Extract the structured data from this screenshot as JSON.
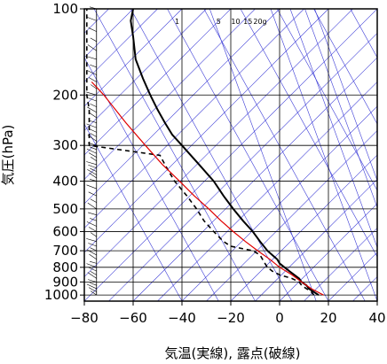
{
  "chart_data": {
    "type": "line",
    "title": "",
    "xlabel": "気温(実線), 露点(破線)",
    "ylabel": "気圧(hPa)",
    "xlim": [
      -80,
      40
    ],
    "ylim": [
      1050,
      100
    ],
    "y_scale": "log",
    "x_ticks": [
      -80,
      -60,
      -40,
      -20,
      0,
      20,
      40
    ],
    "x_tick_labels": [
      "−80",
      "−60",
      "−40",
      "−20",
      "0",
      "20",
      "40"
    ],
    "y_ticks": [
      100,
      200,
      300,
      400,
      500,
      600,
      700,
      800,
      900,
      1000
    ],
    "y_tick_labels": [
      "100",
      "200",
      "300",
      "400",
      "500",
      "600",
      "700",
      "800",
      "900",
      "1000"
    ],
    "grid": true,
    "mixing_ratio_labels": [
      "1",
      "5",
      "10",
      "15",
      "20g"
    ],
    "colors": {
      "isotherm": "#3b3bd6",
      "parcel": "#e00000",
      "temperature": "#000000",
      "dewpoint": "#000000",
      "grid": "#000000"
    },
    "series": [
      {
        "style": "solid",
        "points": [
          [
            1000,
            16
          ],
          [
            975,
            14
          ],
          [
            950,
            12
          ],
          [
            925,
            11
          ],
          [
            900,
            9
          ],
          [
            875,
            8
          ],
          [
            850,
            6
          ],
          [
            825,
            4
          ],
          [
            800,
            2
          ],
          [
            775,
            0
          ],
          [
            750,
            -1
          ],
          [
            725,
            -3
          ],
          [
            700,
            -5
          ],
          [
            650,
            -8
          ],
          [
            600,
            -11
          ],
          [
            550,
            -15
          ],
          [
            500,
            -19
          ],
          [
            450,
            -23
          ],
          [
            400,
            -27
          ],
          [
            350,
            -33
          ],
          [
            300,
            -40
          ],
          [
            275,
            -44
          ],
          [
            250,
            -47
          ],
          [
            225,
            -50
          ],
          [
            200,
            -53
          ],
          [
            175,
            -56
          ],
          [
            150,
            -59
          ],
          [
            125,
            -60
          ],
          [
            110,
            -61
          ],
          [
            100,
            -60
          ]
        ]
      },
      {
        "style": "dashed",
        "points": [
          [
            1000,
            14
          ],
          [
            975,
            13
          ],
          [
            950,
            11
          ],
          [
            925,
            9
          ],
          [
            900,
            8
          ],
          [
            875,
            5
          ],
          [
            850,
            0
          ],
          [
            825,
            -3
          ],
          [
            800,
            -5
          ],
          [
            775,
            -6
          ],
          [
            750,
            -7
          ],
          [
            725,
            -8
          ],
          [
            700,
            -11
          ],
          [
            675,
            -20
          ],
          [
            650,
            -23
          ],
          [
            600,
            -27
          ],
          [
            550,
            -31
          ],
          [
            500,
            -34
          ],
          [
            450,
            -38
          ],
          [
            400,
            -43
          ],
          [
            375,
            -45
          ],
          [
            350,
            -47
          ],
          [
            325,
            -49
          ],
          [
            300,
            -78
          ],
          [
            275,
            -78
          ],
          [
            250,
            -78
          ],
          [
            225,
            -78
          ],
          [
            200,
            -79
          ],
          [
            175,
            -79
          ],
          [
            150,
            -79
          ],
          [
            125,
            -79
          ],
          [
            100,
            -79
          ]
        ]
      },
      {
        "style": "parcel",
        "points": [
          [
            1000,
            18
          ],
          [
            950,
            13
          ],
          [
            900,
            9
          ],
          [
            850,
            5
          ],
          [
            800,
            0
          ],
          [
            750,
            -4
          ],
          [
            700,
            -9
          ],
          [
            650,
            -14
          ],
          [
            600,
            -19
          ],
          [
            550,
            -24
          ],
          [
            500,
            -29
          ],
          [
            450,
            -35
          ],
          [
            400,
            -41
          ],
          [
            350,
            -48
          ],
          [
            300,
            -55
          ],
          [
            250,
            -63
          ],
          [
            200,
            -72
          ],
          [
            180,
            -77
          ]
        ]
      }
    ],
    "wind_profile": {
      "pressures": [
        1000,
        975,
        950,
        925,
        900,
        875,
        850,
        825,
        800,
        775,
        750,
        725,
        700,
        675,
        650,
        625,
        600,
        575,
        550,
        525,
        500,
        475,
        450,
        425,
        400,
        390,
        380,
        370,
        360,
        350,
        340,
        330,
        320,
        310,
        300,
        290,
        280,
        270,
        260,
        250,
        240,
        230,
        220,
        210,
        200,
        190,
        180,
        170,
        160,
        150,
        140,
        130,
        120,
        110,
        100
      ]
    }
  }
}
